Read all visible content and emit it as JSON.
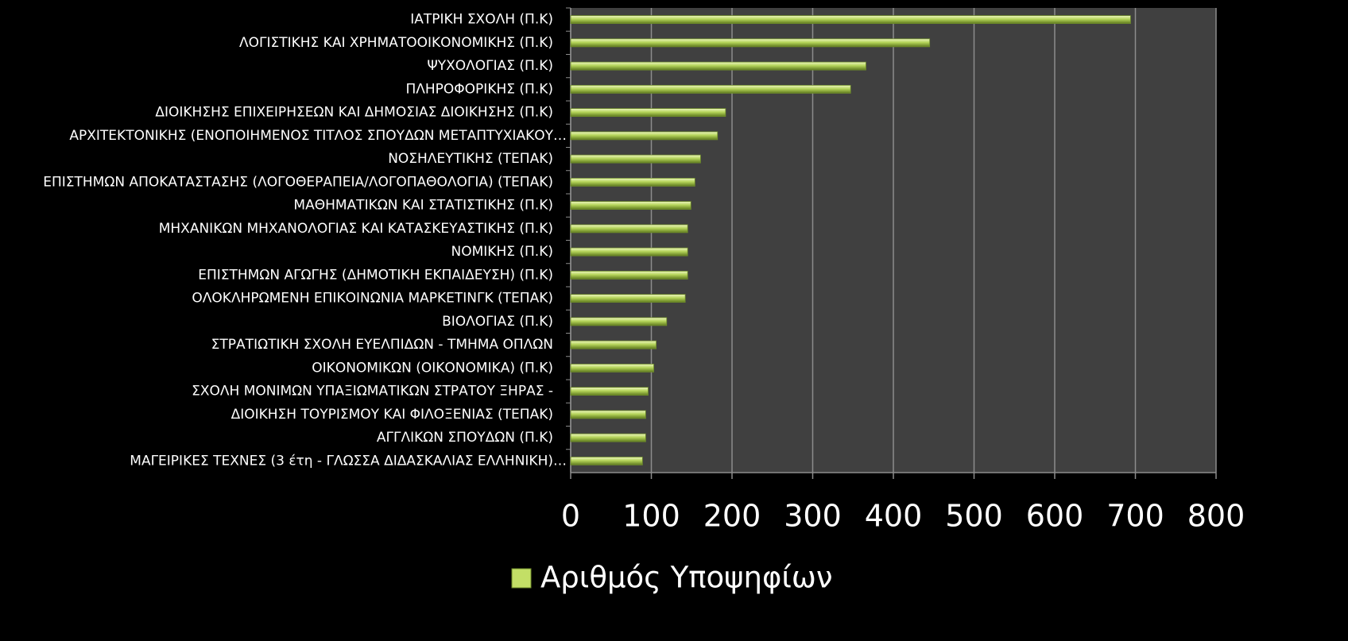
{
  "chart_data": {
    "type": "bar",
    "orientation": "horizontal",
    "categories": [
      "ΙΑΤΡΙΚΗ ΣΧΟΛΗ (Π.Κ)",
      "ΛΟΓΙΣΤΙΚΗΣ ΚΑΙ ΧΡΗΜΑΤΟΟΙΚΟΝΟΜΙΚΗΣ (Π.Κ)",
      "ΨΥΧΟΛΟΓΙΑΣ (Π.Κ)",
      "ΠΛΗΡΟΦΟΡΙΚΗΣ (Π.Κ)",
      "ΔΙΟΙΚΗΣΗΣ ΕΠΙΧΕΙΡΗΣΕΩΝ ΚΑΙ ΔΗΜΟΣΙΑΣ ΔΙΟΙΚΗΣΗΣ (Π.Κ)",
      "ΑΡΧΙΤΕΚΤΟΝΙΚΗΣ (ΕΝΟΠΟΙΗΜΕΝΟΣ ΤΙΤΛΟΣ ΣΠΟΥΔΩΝ ΜΕΤΑΠΤΥΧΙΑΚΟΥ…",
      "ΝΟΣΗΛΕΥΤΙΚΗΣ (ΤΕΠΑΚ)",
      "ΕΠΙΣΤΗΜΩΝ ΑΠΟΚΑΤΑΣΤΑΣΗΣ (ΛΟΓΟΘΕΡΑΠΕΙΑ/ΛΟΓΟΠΑΘΟΛΟΓΙΑ) (ΤΕΠΑΚ)",
      "ΜΑΘΗΜΑΤΙΚΩΝ ΚΑΙ ΣΤΑΤΙΣΤΙΚΗΣ (Π.Κ)",
      "ΜΗΧΑΝΙΚΩΝ ΜΗΧΑΝΟΛΟΓΙΑΣ ΚΑΙ ΚΑΤΑΣΚΕΥΑΣΤΙΚΗΣ (Π.Κ)",
      "ΝΟΜΙΚΗΣ (Π.Κ)",
      "ΕΠΙΣΤΗΜΩΝ ΑΓΩΓΗΣ (ΔΗΜΟΤΙΚΗ ΕΚΠΑΙΔΕΥΣΗ) (Π.Κ)",
      "ΟΛΟΚΛΗΡΩΜΕΝΗ ΕΠΙΚΟΙΝΩΝΙΑ ΜΑΡΚΕΤΙΝΓΚ (ΤΕΠΑΚ)",
      "ΒΙΟΛΟΓΙΑΣ (Π.Κ)",
      "ΣΤΡΑΤΙΩΤΙΚΗ ΣΧΟΛΗ ΕΥΕΛΠΙΔΩΝ - ΤΜΗΜΑ ΟΠΛΩΝ",
      "ΟΙΚΟΝΟΜΙΚΩΝ (ΟΙΚΟΝΟΜΙΚΑ) (Π.Κ)",
      "ΣΧΟΛΗ ΜΟΝΙΜΩΝ ΥΠΑΞΙΩΜΑΤΙΚΩΝ ΣΤΡΑΤΟΥ ΞΗΡΑΣ -",
      "ΔΙΟΙΚΗΣΗ ΤΟΥΡΙΣΜΟΥ ΚΑΙ ΦΙΛΟΞΕΝΙΑΣ (ΤΕΠΑΚ)",
      "ΑΓΓΛΙΚΩΝ ΣΠΟΥΔΩΝ (Π.Κ)",
      "ΜΑΓΕΙΡΙΚΕΣ ΤΕΧΝΕΣ (3 έτη - ΓΛΩΣΣΑ ΔΙΔΑΣΚΑΛΙΑΣ ΕΛΛΗΝΙΚΗ)…"
    ],
    "series": [
      {
        "name": "Αριθμός Υποψηφίων",
        "color": "#c3df66",
        "values": [
          694,
          445,
          366,
          347,
          192,
          182,
          161,
          154,
          149,
          145,
          145,
          145,
          142,
          119,
          106,
          103,
          96,
          93,
          93,
          89
        ]
      }
    ],
    "xlim": [
      0,
      800
    ],
    "xticks": [
      0,
      100,
      200,
      300,
      400,
      500,
      600,
      700,
      800
    ],
    "grid": true,
    "legend": "bottom"
  }
}
